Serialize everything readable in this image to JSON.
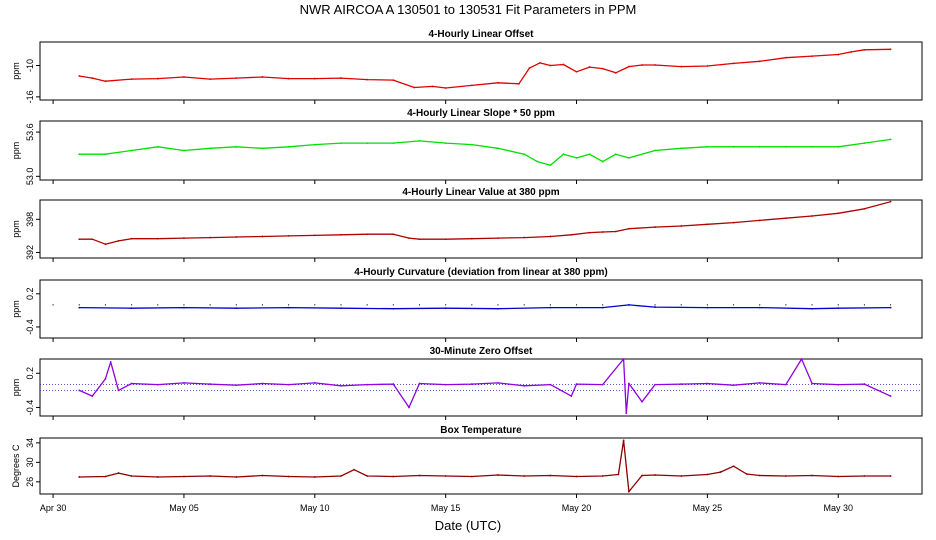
{
  "title": "NWR   AIRCOA A   130501 to 130531   Fit Parameters in PPM",
  "xlabel": "Date (UTC)",
  "x_ticks": [
    "Apr 30",
    "May 05",
    "May 10",
    "May 15",
    "May 20",
    "May 25",
    "May 30"
  ],
  "x_tick_days": [
    0,
    5,
    10,
    15,
    20,
    25,
    30
  ],
  "x_range_days": [
    -0.5,
    33.2
  ],
  "chart_data": [
    {
      "type": "line",
      "title": "4-Hourly Linear Offset",
      "ylabel": "ppm",
      "color": "#e00000",
      "y_ticks": [
        "-10",
        "-16"
      ],
      "y_tick_values": [
        -10,
        -16
      ],
      "ylim": [
        -16.6,
        -5.5
      ],
      "x": [
        1.0,
        1.5,
        2.0,
        3.0,
        4.0,
        5.0,
        6.0,
        7.0,
        8.0,
        9.0,
        10.0,
        11.0,
        12.0,
        13.0,
        13.8,
        14.5,
        15.0,
        16.0,
        17.0,
        17.8,
        18.2,
        18.6,
        19.0,
        19.5,
        20.0,
        20.5,
        21.0,
        21.5,
        22.0,
        22.5,
        23.0,
        24.0,
        25.0,
        26.0,
        27.0,
        28.0,
        29.0,
        30.0,
        30.5,
        31.0,
        32.0
      ],
      "y": [
        -12.0,
        -12.4,
        -13.0,
        -12.6,
        -12.5,
        -12.2,
        -12.6,
        -12.4,
        -12.2,
        -12.5,
        -12.5,
        -12.4,
        -12.7,
        -12.8,
        -14.2,
        -14.0,
        -14.3,
        -13.8,
        -13.3,
        -13.5,
        -10.5,
        -9.5,
        -10.0,
        -9.8,
        -11.2,
        -10.3,
        -10.6,
        -11.4,
        -10.2,
        -9.9,
        -9.9,
        -10.2,
        -10.1,
        -9.6,
        -9.2,
        -8.5,
        -8.2,
        -7.9,
        -7.4,
        -7.0,
        -6.9
      ]
    },
    {
      "type": "line",
      "title": "4-Hourly Linear Slope * 50 ppm",
      "ylabel": "ppm",
      "color": "#00e000",
      "y_ticks": [
        "53.6",
        "53.0"
      ],
      "y_tick_values": [
        53.6,
        53.0
      ],
      "ylim": [
        52.95,
        53.75
      ],
      "x": [
        1.0,
        2.0,
        3.0,
        4.0,
        5.0,
        6.0,
        7.0,
        8.0,
        9.0,
        10.0,
        11.0,
        12.0,
        13.0,
        14.0,
        15.0,
        16.0,
        17.0,
        18.0,
        18.5,
        19.0,
        19.5,
        20.0,
        20.5,
        21.0,
        21.5,
        22.0,
        23.0,
        24.0,
        25.0,
        26.0,
        27.0,
        28.0,
        29.0,
        30.0,
        31.0,
        32.0
      ],
      "y": [
        53.3,
        53.3,
        53.35,
        53.4,
        53.35,
        53.38,
        53.4,
        53.38,
        53.4,
        53.43,
        53.45,
        53.45,
        53.45,
        53.48,
        53.45,
        53.43,
        53.38,
        53.3,
        53.2,
        53.15,
        53.3,
        53.25,
        53.3,
        53.2,
        53.3,
        53.25,
        53.35,
        53.38,
        53.4,
        53.4,
        53.4,
        53.4,
        53.4,
        53.4,
        53.45,
        53.5
      ]
    },
    {
      "type": "line",
      "title": "4-Hourly Linear Value at 380 ppm",
      "ylabel": "ppm",
      "color": "#b00000",
      "y_ticks": [
        "398",
        "392"
      ],
      "y_tick_values": [
        398,
        392
      ],
      "ylim": [
        391.0,
        401.5
      ],
      "x": [
        1.0,
        1.5,
        2.0,
        2.5,
        3.0,
        4.0,
        5.0,
        6.0,
        7.0,
        8.0,
        9.0,
        10.0,
        11.0,
        12.0,
        13.0,
        13.6,
        14.0,
        15.0,
        16.0,
        17.0,
        18.0,
        19.0,
        19.8,
        20.5,
        21.0,
        21.5,
        22.0,
        23.0,
        24.0,
        25.0,
        26.0,
        27.0,
        28.0,
        29.0,
        30.0,
        31.0,
        32.0
      ],
      "y": [
        394.4,
        394.4,
        393.5,
        394.1,
        394.5,
        394.5,
        394.6,
        394.7,
        394.8,
        394.9,
        395.0,
        395.1,
        395.2,
        395.3,
        395.3,
        394.6,
        394.4,
        394.4,
        394.5,
        394.6,
        394.7,
        394.9,
        395.2,
        395.6,
        395.7,
        395.8,
        396.3,
        396.6,
        396.8,
        397.1,
        397.4,
        397.8,
        398.2,
        398.6,
        399.1,
        399.9,
        401.2
      ]
    },
    {
      "type": "line",
      "title": "4-Hourly Curvature (deviation from linear at 380 ppm)",
      "ylabel": "ppm",
      "color": "#0000d0",
      "y_ticks": [
        "0.2",
        "-0.4"
      ],
      "y_tick_values": [
        0.2,
        -0.4
      ],
      "ylim": [
        -0.6,
        0.45
      ],
      "x": [
        1.0,
        3.0,
        5.0,
        7.0,
        9.0,
        11.0,
        13.0,
        15.0,
        17.0,
        19.0,
        21.0,
        22.0,
        23.0,
        25.0,
        27.0,
        29.0,
        30.0,
        32.0
      ],
      "y": [
        -0.05,
        -0.06,
        -0.05,
        -0.06,
        -0.05,
        -0.06,
        -0.07,
        -0.06,
        -0.07,
        -0.05,
        -0.05,
        0.0,
        -0.04,
        -0.05,
        -0.05,
        -0.07,
        -0.06,
        -0.05
      ]
    },
    {
      "type": "line",
      "title": "30-Minute Zero Offset",
      "ylabel": "ppm",
      "color": "#9000e0",
      "y_ticks": [
        "0.2",
        "-0.4"
      ],
      "y_tick_values": [
        0.2,
        -0.4
      ],
      "ylim": [
        -0.55,
        0.45
      ],
      "x": [
        1.0,
        1.5,
        2.0,
        2.2,
        2.5,
        3.0,
        4.0,
        5.0,
        6.0,
        7.0,
        8.0,
        9.0,
        10.0,
        11.0,
        12.0,
        13.0,
        13.6,
        14.0,
        15.0,
        16.0,
        17.0,
        18.0,
        19.0,
        19.8,
        20.0,
        21.0,
        21.8,
        21.9,
        22.0,
        22.5,
        23.0,
        24.0,
        25.0,
        26.0,
        27.0,
        28.0,
        28.6,
        29.0,
        30.0,
        31.0,
        32.0
      ],
      "y": [
        -0.1,
        -0.2,
        0.1,
        0.4,
        -0.1,
        0.02,
        0.0,
        0.03,
        0.01,
        -0.01,
        0.02,
        0.0,
        0.03,
        -0.02,
        0.0,
        0.01,
        -0.4,
        0.02,
        0.0,
        0.01,
        0.03,
        -0.02,
        0.0,
        -0.2,
        0.01,
        0.0,
        0.45,
        -0.5,
        0.02,
        -0.3,
        0.0,
        0.01,
        0.02,
        -0.01,
        0.03,
        0.0,
        0.45,
        0.02,
        0.0,
        0.01,
        -0.2
      ]
    },
    {
      "type": "line",
      "title": "Box Temperature",
      "ylabel": "Degrees C",
      "color": "#900000",
      "y_ticks": [
        "34",
        "30",
        "26"
      ],
      "y_tick_values": [
        34,
        30,
        26
      ],
      "ylim": [
        23.5,
        35.0
      ],
      "x": [
        1.0,
        2.0,
        2.5,
        3.0,
        4.0,
        5.0,
        6.0,
        7.0,
        8.0,
        9.0,
        10.0,
        11.0,
        11.5,
        12.0,
        13.0,
        14.0,
        15.0,
        16.0,
        17.0,
        18.0,
        19.0,
        20.0,
        21.0,
        21.6,
        21.8,
        22.0,
        22.5,
        23.0,
        24.0,
        25.0,
        25.5,
        26.0,
        26.5,
        27.0,
        28.0,
        29.0,
        30.0,
        31.0,
        32.0
      ],
      "y": [
        27.0,
        27.1,
        27.8,
        27.2,
        27.0,
        27.1,
        27.2,
        27.0,
        27.3,
        27.1,
        27.0,
        27.2,
        28.5,
        27.2,
        27.1,
        27.3,
        27.2,
        27.1,
        27.4,
        27.2,
        27.3,
        27.1,
        27.2,
        27.5,
        34.5,
        24.0,
        27.3,
        27.4,
        27.2,
        27.5,
        28.0,
        29.2,
        27.6,
        27.3,
        27.2,
        27.3,
        27.1,
        27.2,
        27.2
      ]
    }
  ]
}
